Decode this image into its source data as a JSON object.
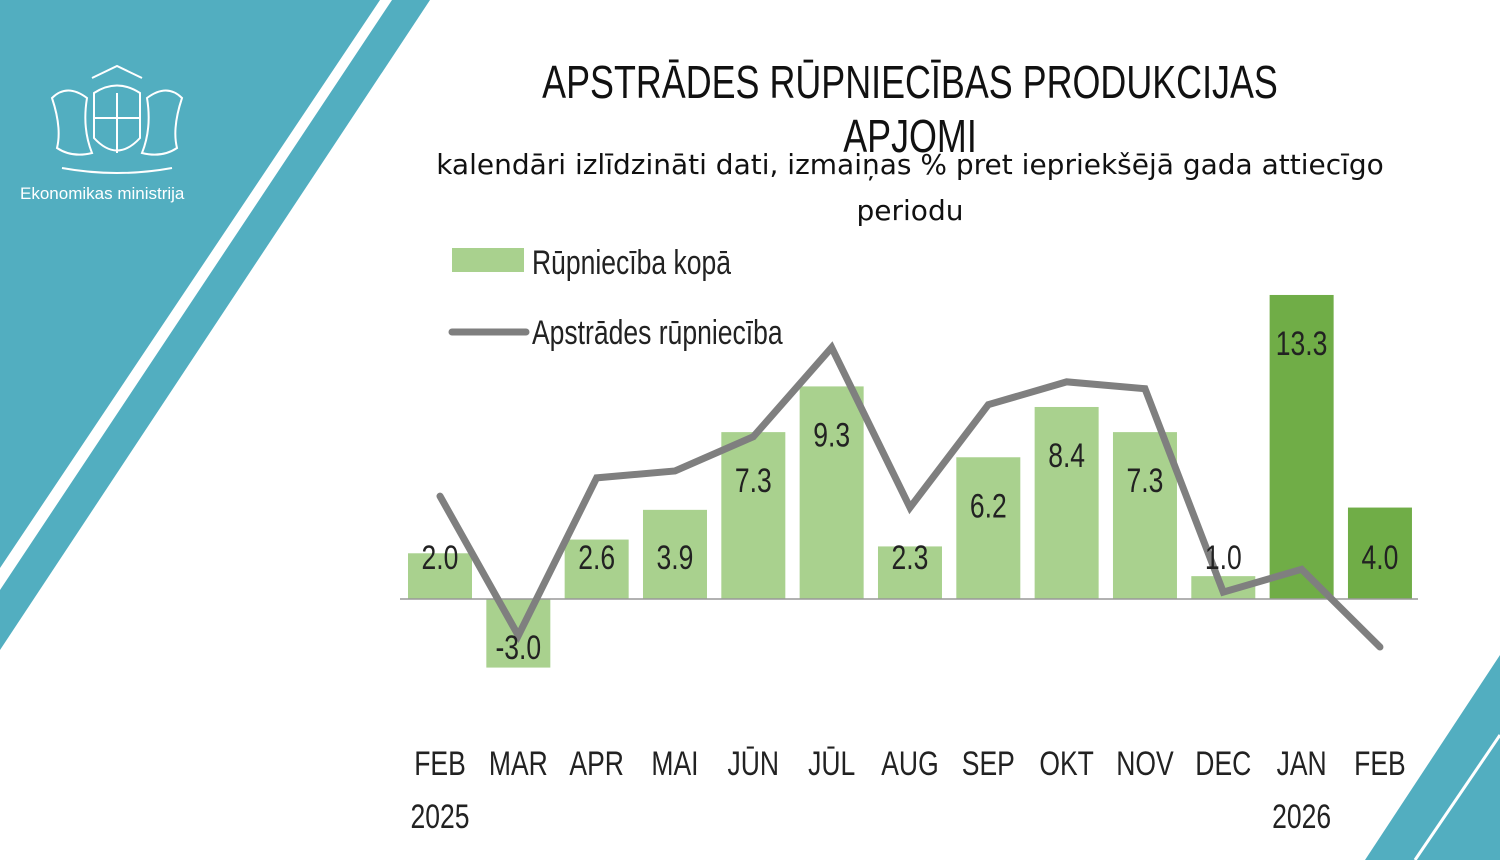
{
  "header": {
    "organization": "Ekonomikas ministrija",
    "title": "APSTRĀDES RŪPNIECĪBAS PRODUKCIJAS APJOMI",
    "subtitle": "kalendāri izlīdzināti dati, izmaiņas % pret iepriekšējā gada attiecīgo periodu"
  },
  "colors": {
    "brand": "#52aec0",
    "bar_light": "#a9d18e",
    "bar_dark": "#70ad47",
    "line": "#7f7f7f"
  },
  "chart_data": {
    "type": "bar+line",
    "categories": [
      "FEB",
      "MAR",
      "APR",
      "MAI",
      "JŪN",
      "JŪL",
      "AUG",
      "SEP",
      "OKT",
      "NOV",
      "DEC",
      "JAN",
      "FEB"
    ],
    "year_labels": [
      {
        "index": 0,
        "text": "2025"
      },
      {
        "index": 11,
        "text": "2026"
      }
    ],
    "series": [
      {
        "name": "Rūpniecība kopā",
        "kind": "bar",
        "values": [
          2.0,
          -3.0,
          2.6,
          3.9,
          7.3,
          9.3,
          2.3,
          6.2,
          8.4,
          7.3,
          1.0,
          13.3,
          4.0
        ],
        "labels": [
          "2.0",
          "-3.0",
          "2.6",
          "3.9",
          "7.3",
          "9.3",
          "2.3",
          "6.2",
          "8.4",
          "7.3",
          "1.0",
          "13.3",
          "4.0"
        ],
        "highlighted_indices": [
          11,
          12
        ]
      },
      {
        "name": "Apstrādes rūpniecība",
        "kind": "line",
        "values": [
          4.5,
          -1.6,
          5.3,
          5.6,
          7.1,
          11.0,
          4.0,
          8.5,
          9.5,
          9.2,
          0.3,
          1.3,
          -2.1
        ]
      }
    ],
    "legend_placement": "top-left",
    "grid": false
  }
}
